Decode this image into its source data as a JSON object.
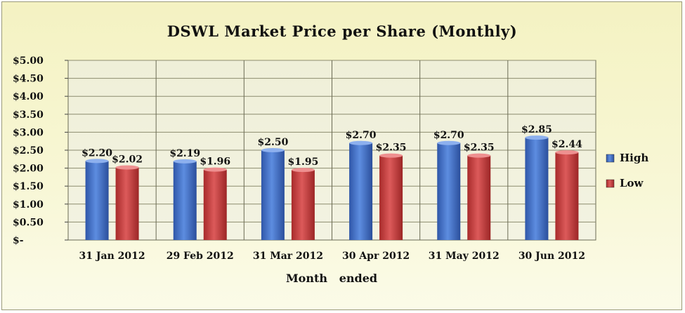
{
  "chart_data": {
    "type": "bar",
    "title": "DSWL Market Price per Share (Monthly)",
    "xlabel": "Month   ended",
    "ylabel": "",
    "categories": [
      "31 Jan 2012",
      "29 Feb 2012",
      "31 Mar 2012",
      "30 Apr 2012",
      "31 May 2012",
      "30 Jun 2012"
    ],
    "series": [
      {
        "name": "High",
        "values": [
          2.2,
          2.19,
          2.5,
          2.7,
          2.7,
          2.85
        ],
        "labels": [
          "$2.20",
          "$2.19",
          "$2.50",
          "$2.70",
          "$2.70",
          "$2.85"
        ],
        "color": "#3f6fc7"
      },
      {
        "name": "Low",
        "values": [
          2.02,
          1.96,
          1.95,
          2.35,
          2.35,
          2.44
        ],
        "labels": [
          "$2.02",
          "$1.96",
          "$1.95",
          "$2.35",
          "$2.35",
          "$2.44"
        ],
        "color": "#c63a3a"
      }
    ],
    "ylim": [
      0,
      5
    ],
    "yticks": [
      0,
      0.5,
      1,
      1.5,
      2,
      2.5,
      3,
      3.5,
      4,
      4.5,
      5
    ],
    "ytick_labels": [
      "$-",
      "$0.50",
      "$1.00",
      "$1.50",
      "$2.00",
      "$2.50",
      "$3.00",
      "$3.50",
      "$4.00",
      "$4.50",
      "$5.00"
    ],
    "grid": true,
    "legend_position": "right"
  }
}
